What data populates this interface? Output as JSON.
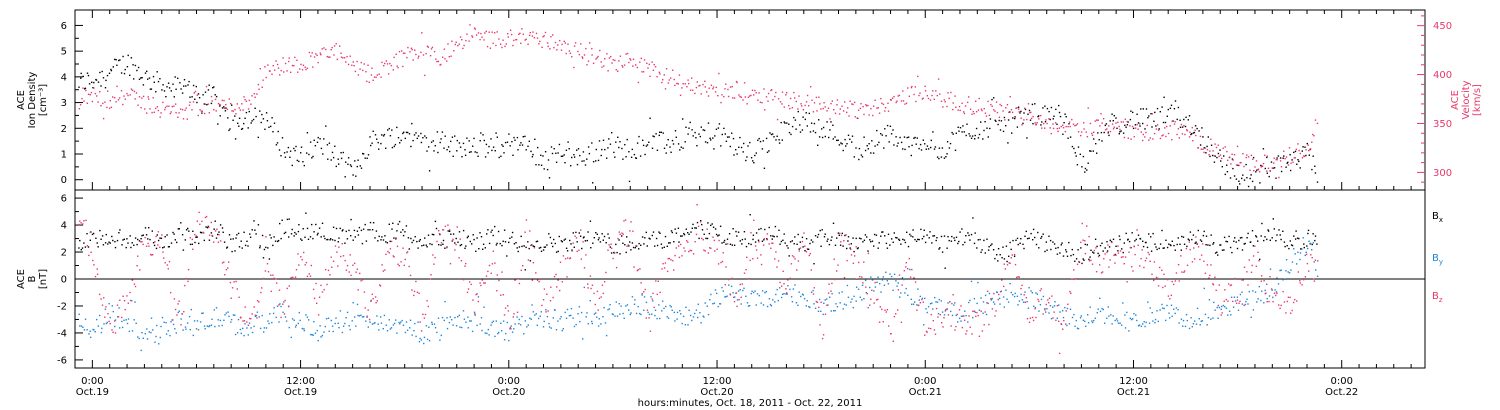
{
  "colors": {
    "black": "#000000",
    "red": "#e8386a",
    "blue": "#1f86d8"
  },
  "x_axis": {
    "label": "hours:minutes, Oct. 18, 2011 - Oct. 22, 2011",
    "ticks": [
      {
        "hour": 0,
        "time": "0:00",
        "date": "Oct.19"
      },
      {
        "hour": 12,
        "time": "12:00",
        "date": "Oct.19"
      },
      {
        "hour": 24,
        "time": "0:00",
        "date": "Oct.20"
      },
      {
        "hour": 36,
        "time": "12:00",
        "date": "Oct.20"
      },
      {
        "hour": 48,
        "time": "0:00",
        "date": "Oct.21"
      },
      {
        "hour": 60,
        "time": "12:00",
        "date": "Oct.21"
      },
      {
        "hour": 72,
        "time": "0:00",
        "date": "Oct.22"
      }
    ],
    "range_hours": [
      -1,
      76.8
    ],
    "data_end_hour": 70.6
  },
  "chart_data": [
    {
      "type": "scatter",
      "panel": "top",
      "ylabel_left": [
        "ACE",
        "Ion Density",
        "[cm⁻³]"
      ],
      "ylabel_right": [
        "ACE",
        "Velocity",
        "[km/s]"
      ],
      "ylim_left": [
        -0.4,
        6.6
      ],
      "ylim_right": [
        282,
        466
      ],
      "yticks_left": [
        0,
        1,
        2,
        3,
        4,
        5,
        6
      ],
      "yticks_right": [
        300,
        350,
        400,
        450
      ],
      "series": [
        {
          "axis": "left",
          "color": "black",
          "x": [
            -0.8,
            0,
            1,
            2,
            3,
            4,
            5,
            6,
            7,
            8,
            9,
            10,
            11,
            12,
            13,
            14,
            15,
            16,
            17,
            18,
            19,
            20,
            21,
            22,
            23,
            24,
            25,
            26,
            27,
            28,
            29,
            30,
            31,
            32,
            33,
            34,
            35,
            36,
            37,
            38,
            39,
            40,
            41,
            42,
            43,
            44,
            45,
            46,
            47,
            48,
            49,
            50,
            51,
            52,
            53,
            54,
            55,
            56,
            57,
            58,
            59,
            60,
            61,
            62,
            63,
            64,
            65,
            66,
            67,
            68,
            69,
            70,
            70.6
          ],
          "y": [
            3.8,
            3.9,
            4.2,
            4.6,
            4.0,
            3.7,
            3.6,
            3.4,
            3.2,
            2.2,
            2.5,
            2.4,
            1.2,
            0.8,
            1.4,
            0.9,
            0.3,
            1.5,
            1.7,
            1.8,
            1.6,
            1.5,
            1.3,
            1.5,
            1.2,
            1.4,
            1.3,
            0.8,
            1.0,
            0.9,
            1.1,
            1.3,
            1.2,
            1.5,
            1.4,
            1.6,
            1.7,
            1.8,
            1.4,
            1.0,
            1.5,
            2.0,
            2.4,
            2.1,
            1.7,
            1.2,
            1.5,
            1.8,
            1.3,
            1.6,
            1.2,
            1.8,
            2.0,
            2.1,
            2.3,
            2.6,
            2.5,
            2.2,
            0.6,
            1.5,
            2.2,
            2.4,
            2.3,
            2.5,
            2.4,
            1.6,
            0.8,
            0.2,
            0.2,
            0.5,
            0.6,
            1.0,
            0.1
          ]
        },
        {
          "axis": "right",
          "color": "red",
          "x": [
            -0.8,
            0,
            1,
            2,
            3,
            4,
            5,
            6,
            7,
            8,
            9,
            10,
            11,
            12,
            13,
            14,
            15,
            16,
            17,
            18,
            19,
            20,
            21,
            22,
            23,
            24,
            25,
            26,
            27,
            28,
            29,
            30,
            31,
            32,
            33,
            34,
            35,
            36,
            37,
            38,
            39,
            40,
            41,
            42,
            43,
            44,
            45,
            46,
            47,
            48,
            49,
            50,
            51,
            52,
            53,
            54,
            55,
            56,
            57,
            58,
            59,
            60,
            61,
            62,
            63,
            64,
            65,
            66,
            67,
            68,
            69,
            70,
            70.6
          ],
          "y": [
            372,
            380,
            375,
            378,
            373,
            365,
            362,
            366,
            370,
            368,
            372,
            405,
            410,
            412,
            420,
            425,
            408,
            400,
            410,
            420,
            425,
            418,
            430,
            440,
            435,
            438,
            440,
            436,
            432,
            425,
            420,
            410,
            415,
            405,
            400,
            392,
            388,
            380,
            385,
            382,
            380,
            375,
            372,
            370,
            368,
            365,
            368,
            372,
            380,
            385,
            376,
            370,
            368,
            365,
            360,
            356,
            352,
            348,
            344,
            350,
            346,
            343,
            340,
            346,
            342,
            330,
            320,
            312,
            309,
            310,
            318,
            326,
            352
          ]
        }
      ]
    },
    {
      "type": "scatter",
      "panel": "bottom",
      "ylabel_left": [
        "ACE",
        "B",
        "[nT]"
      ],
      "ylim": [
        -6.6,
        6.6
      ],
      "yticks": [
        -6,
        -4,
        -2,
        0,
        2,
        4,
        6
      ],
      "legend": [
        "Bx",
        "By",
        "Bz"
      ],
      "series": [
        {
          "name": "Bx",
          "color": "black",
          "x": [
            -0.8,
            0,
            1,
            2,
            3,
            4,
            5,
            6,
            7,
            8,
            9,
            10,
            11,
            12,
            13,
            14,
            15,
            16,
            17,
            18,
            19,
            20,
            21,
            22,
            23,
            24,
            25,
            26,
            27,
            28,
            29,
            30,
            31,
            32,
            33,
            34,
            35,
            36,
            37,
            38,
            39,
            40,
            41,
            42,
            43,
            44,
            45,
            46,
            47,
            48,
            49,
            50,
            51,
            52,
            53,
            54,
            55,
            56,
            57,
            58,
            59,
            60,
            61,
            62,
            63,
            64,
            65,
            66,
            67,
            68,
            69,
            70,
            70.6
          ],
          "y": [
            2.8,
            3.2,
            2.6,
            3.0,
            3.4,
            2.4,
            3.6,
            2.8,
            3.8,
            2.6,
            3.2,
            2.8,
            3.9,
            3.6,
            3.8,
            3.2,
            3.0,
            3.6,
            3.4,
            3.8,
            2.6,
            2.9,
            3.1,
            2.6,
            3.3,
            3.0,
            2.5,
            2.8,
            2.7,
            3.0,
            2.9,
            2.6,
            2.7,
            3.2,
            2.9,
            3.6,
            3.7,
            3.4,
            3.2,
            2.8,
            3.5,
            2.9,
            2.6,
            3.2,
            2.9,
            2.4,
            3.0,
            2.8,
            3.1,
            3.0,
            2.7,
            3.2,
            2.9,
            1.8,
            2.2,
            3.4,
            2.6,
            2.1,
            1.9,
            2.4,
            2.5,
            3.0,
            2.8,
            2.2,
            2.9,
            3.0,
            2.4,
            2.7,
            3.0,
            3.1,
            2.9,
            3.0,
            3.2
          ]
        },
        {
          "name": "By",
          "color": "blue",
          "x": [
            -0.8,
            0,
            1,
            2,
            3,
            4,
            5,
            6,
            7,
            8,
            9,
            10,
            11,
            12,
            13,
            14,
            15,
            16,
            17,
            18,
            19,
            20,
            21,
            22,
            23,
            24,
            25,
            26,
            27,
            28,
            29,
            30,
            31,
            32,
            33,
            34,
            35,
            36,
            37,
            38,
            39,
            40,
            41,
            42,
            43,
            44,
            45,
            46,
            47,
            48,
            49,
            50,
            51,
            52,
            53,
            54,
            55,
            56,
            57,
            58,
            59,
            60,
            61,
            62,
            63,
            64,
            65,
            66,
            67,
            68,
            69,
            70,
            70.6
          ],
          "y": [
            -3.2,
            -3.8,
            -2.6,
            -3.0,
            -4.2,
            -3.6,
            -3.1,
            -3.4,
            -2.8,
            -3.2,
            -3.6,
            -3.0,
            -2.6,
            -3.2,
            -3.8,
            -3.4,
            -3.0,
            -2.8,
            -3.2,
            -3.6,
            -4.0,
            -3.4,
            -2.9,
            -3.1,
            -3.6,
            -3.8,
            -3.2,
            -2.8,
            -3.0,
            -2.6,
            -3.2,
            -2.4,
            -2.0,
            -1.8,
            -2.4,
            -2.8,
            -2.6,
            -1.4,
            -1.0,
            -1.6,
            -1.2,
            -0.8,
            -1.4,
            -1.8,
            -1.6,
            -1.2,
            -0.4,
            -0.2,
            -0.8,
            -1.8,
            -2.2,
            -2.6,
            -2.0,
            -1.6,
            -1.0,
            -1.4,
            -2.0,
            -2.8,
            -3.0,
            -2.4,
            -2.6,
            -3.2,
            -2.8,
            -2.4,
            -3.0,
            -2.8,
            -2.2,
            -1.8,
            -1.2,
            -0.6,
            1.2,
            2.8,
            0.6
          ]
        },
        {
          "name": "Bz",
          "color": "red",
          "x": [
            -0.8,
            0,
            1,
            2,
            3,
            4,
            5,
            6,
            7,
            8,
            9,
            10,
            11,
            12,
            13,
            14,
            15,
            16,
            17,
            18,
            19,
            20,
            21,
            22,
            23,
            24,
            25,
            26,
            27,
            28,
            29,
            30,
            31,
            32,
            33,
            34,
            35,
            36,
            37,
            38,
            39,
            40,
            41,
            42,
            43,
            44,
            45,
            46,
            47,
            48,
            49,
            50,
            51,
            52,
            53,
            54,
            55,
            56,
            57,
            58,
            59,
            60,
            61,
            62,
            63,
            64,
            65,
            66,
            67,
            68,
            69,
            70,
            70.6
          ],
          "y": [
            4.8,
            2.0,
            -3.6,
            -1.6,
            3.2,
            2.4,
            -2.8,
            4.6,
            3.8,
            -0.6,
            -3.0,
            0.8,
            -2.4,
            2.6,
            -1.6,
            3.0,
            0.8,
            -2.6,
            2.4,
            1.6,
            -3.0,
            3.6,
            2.8,
            -2.4,
            1.6,
            -3.4,
            3.8,
            -1.8,
            0.4,
            3.2,
            -2.2,
            2.8,
            3.6,
            -2.6,
            1.2,
            2.4,
            3.0,
            2.2,
            -1.4,
            1.8,
            2.6,
            -0.4,
            3.4,
            -4.0,
            2.6,
            1.8,
            -2.0,
            -3.0,
            0.8,
            -3.4,
            -2.6,
            -3.0,
            -3.4,
            -1.6,
            1.6,
            -2.4,
            -1.2,
            -3.2,
            2.8,
            1.2,
            2.4,
            1.6,
            1.0,
            -1.2,
            1.8,
            2.4,
            -1.6,
            -0.8,
            1.6,
            -1.4,
            -2.0,
            1.2,
            0.8
          ]
        }
      ]
    }
  ]
}
